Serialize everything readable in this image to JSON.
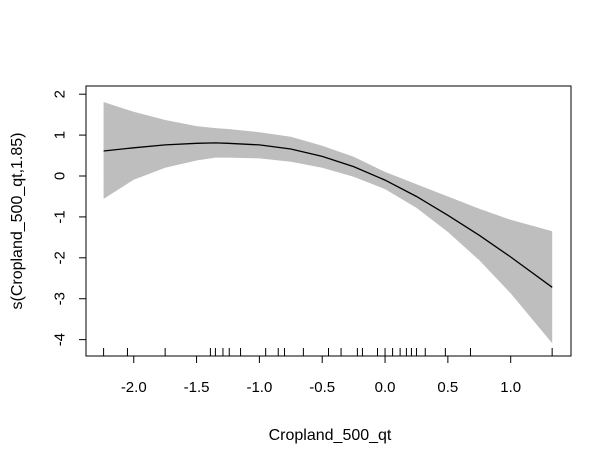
{
  "chart_data": {
    "type": "line",
    "title": "",
    "xlabel": "Cropland_500_qt",
    "ylabel": "s(Cropland_500_qt,1.85)",
    "xlim": [
      -2.38,
      1.48
    ],
    "ylim": [
      -4.4,
      2.2
    ],
    "x_ticks": [
      -2.0,
      -1.5,
      -1.0,
      -0.5,
      0.0,
      0.5,
      1.0
    ],
    "x_tick_labels": [
      "-2.0",
      "-1.5",
      "-1.0",
      "-0.5",
      "0.0",
      "0.5",
      "1.0"
    ],
    "y_ticks": [
      -4,
      -3,
      -2,
      -1,
      0,
      1,
      2
    ],
    "y_tick_labels": [
      "-4",
      "-3",
      "-2",
      "-1",
      "0",
      "1",
      "2"
    ],
    "grid": false,
    "legend": "none",
    "colors": {
      "line": "#000000",
      "band": "#bebebe"
    },
    "series": [
      {
        "x": [
          -2.24,
          -2.0,
          -1.75,
          -1.5,
          -1.35,
          -1.25,
          -1.0,
          -0.75,
          -0.5,
          -0.25,
          0.0,
          0.25,
          0.5,
          0.75,
          1.0,
          1.33
        ],
        "values": [
          0.61,
          0.69,
          0.76,
          0.8,
          0.81,
          0.8,
          0.76,
          0.66,
          0.48,
          0.23,
          -0.1,
          -0.5,
          -0.96,
          -1.45,
          -1.98,
          -2.72
        ],
        "lower": [
          -0.56,
          -0.09,
          0.2,
          0.38,
          0.45,
          0.45,
          0.43,
          0.35,
          0.2,
          -0.02,
          -0.32,
          -0.78,
          -1.37,
          -2.06,
          -2.87,
          -4.09
        ],
        "upper": [
          1.81,
          1.57,
          1.37,
          1.22,
          1.17,
          1.15,
          1.07,
          0.96,
          0.74,
          0.47,
          0.1,
          -0.2,
          -0.5,
          -0.8,
          -1.07,
          -1.35
        ]
      }
    ],
    "rug": [
      -2.24,
      -2.05,
      -1.75,
      -1.39,
      -1.35,
      -1.29,
      -1.24,
      -1.15,
      -0.95,
      -0.85,
      -0.8,
      -0.65,
      -0.45,
      -0.35,
      -0.22,
      -0.18,
      -0.06,
      0.0,
      0.06,
      0.12,
      0.17,
      0.21,
      0.25,
      0.32,
      0.48,
      0.68,
      1.33
    ]
  }
}
